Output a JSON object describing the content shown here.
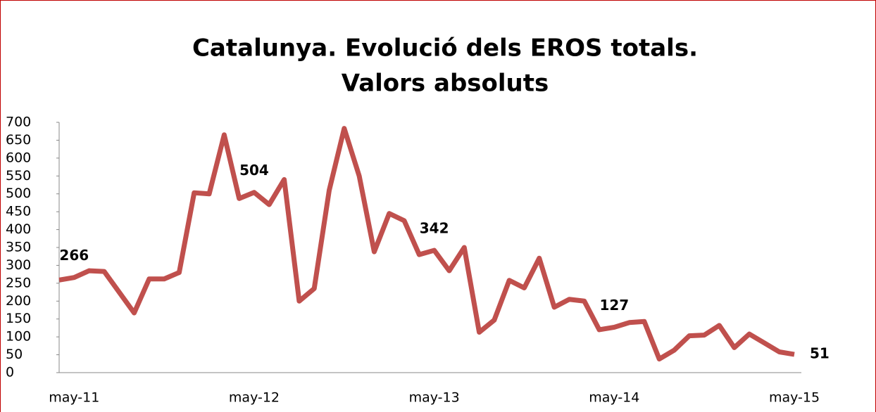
{
  "chart_data": {
    "type": "line",
    "title": [
      "Catalunya. Evolució dels EROS totals.",
      "Valors absoluts"
    ],
    "categories": [
      null,
      "may-11",
      null,
      null,
      null,
      null,
      null,
      null,
      null,
      null,
      null,
      null,
      null,
      "may-12",
      null,
      null,
      null,
      null,
      null,
      null,
      null,
      null,
      null,
      null,
      null,
      "may-13",
      null,
      null,
      null,
      null,
      null,
      null,
      null,
      null,
      null,
      null,
      null,
      "may-14",
      null,
      null,
      null,
      null,
      null,
      null,
      null,
      null,
      null,
      null,
      null,
      "may-15"
    ],
    "series": [
      {
        "name": "EROS",
        "color": "#c0504d",
        "values": [
          259,
          266,
          285,
          283,
          225,
          167,
          262,
          262,
          280,
          503,
          500,
          665,
          487,
          504,
          470,
          540,
          200,
          235,
          510,
          683,
          550,
          338,
          445,
          425,
          330,
          342,
          285,
          350,
          113,
          147,
          258,
          237,
          320,
          183,
          205,
          200,
          120,
          127,
          140,
          143,
          38,
          63,
          103,
          105,
          132,
          70,
          108,
          83,
          58,
          51
        ]
      }
    ],
    "ylim": [
      0,
      700
    ],
    "yticks": [
      0,
      50,
      100,
      150,
      200,
      250,
      300,
      350,
      400,
      450,
      500,
      550,
      600,
      650,
      700
    ]
  }
}
